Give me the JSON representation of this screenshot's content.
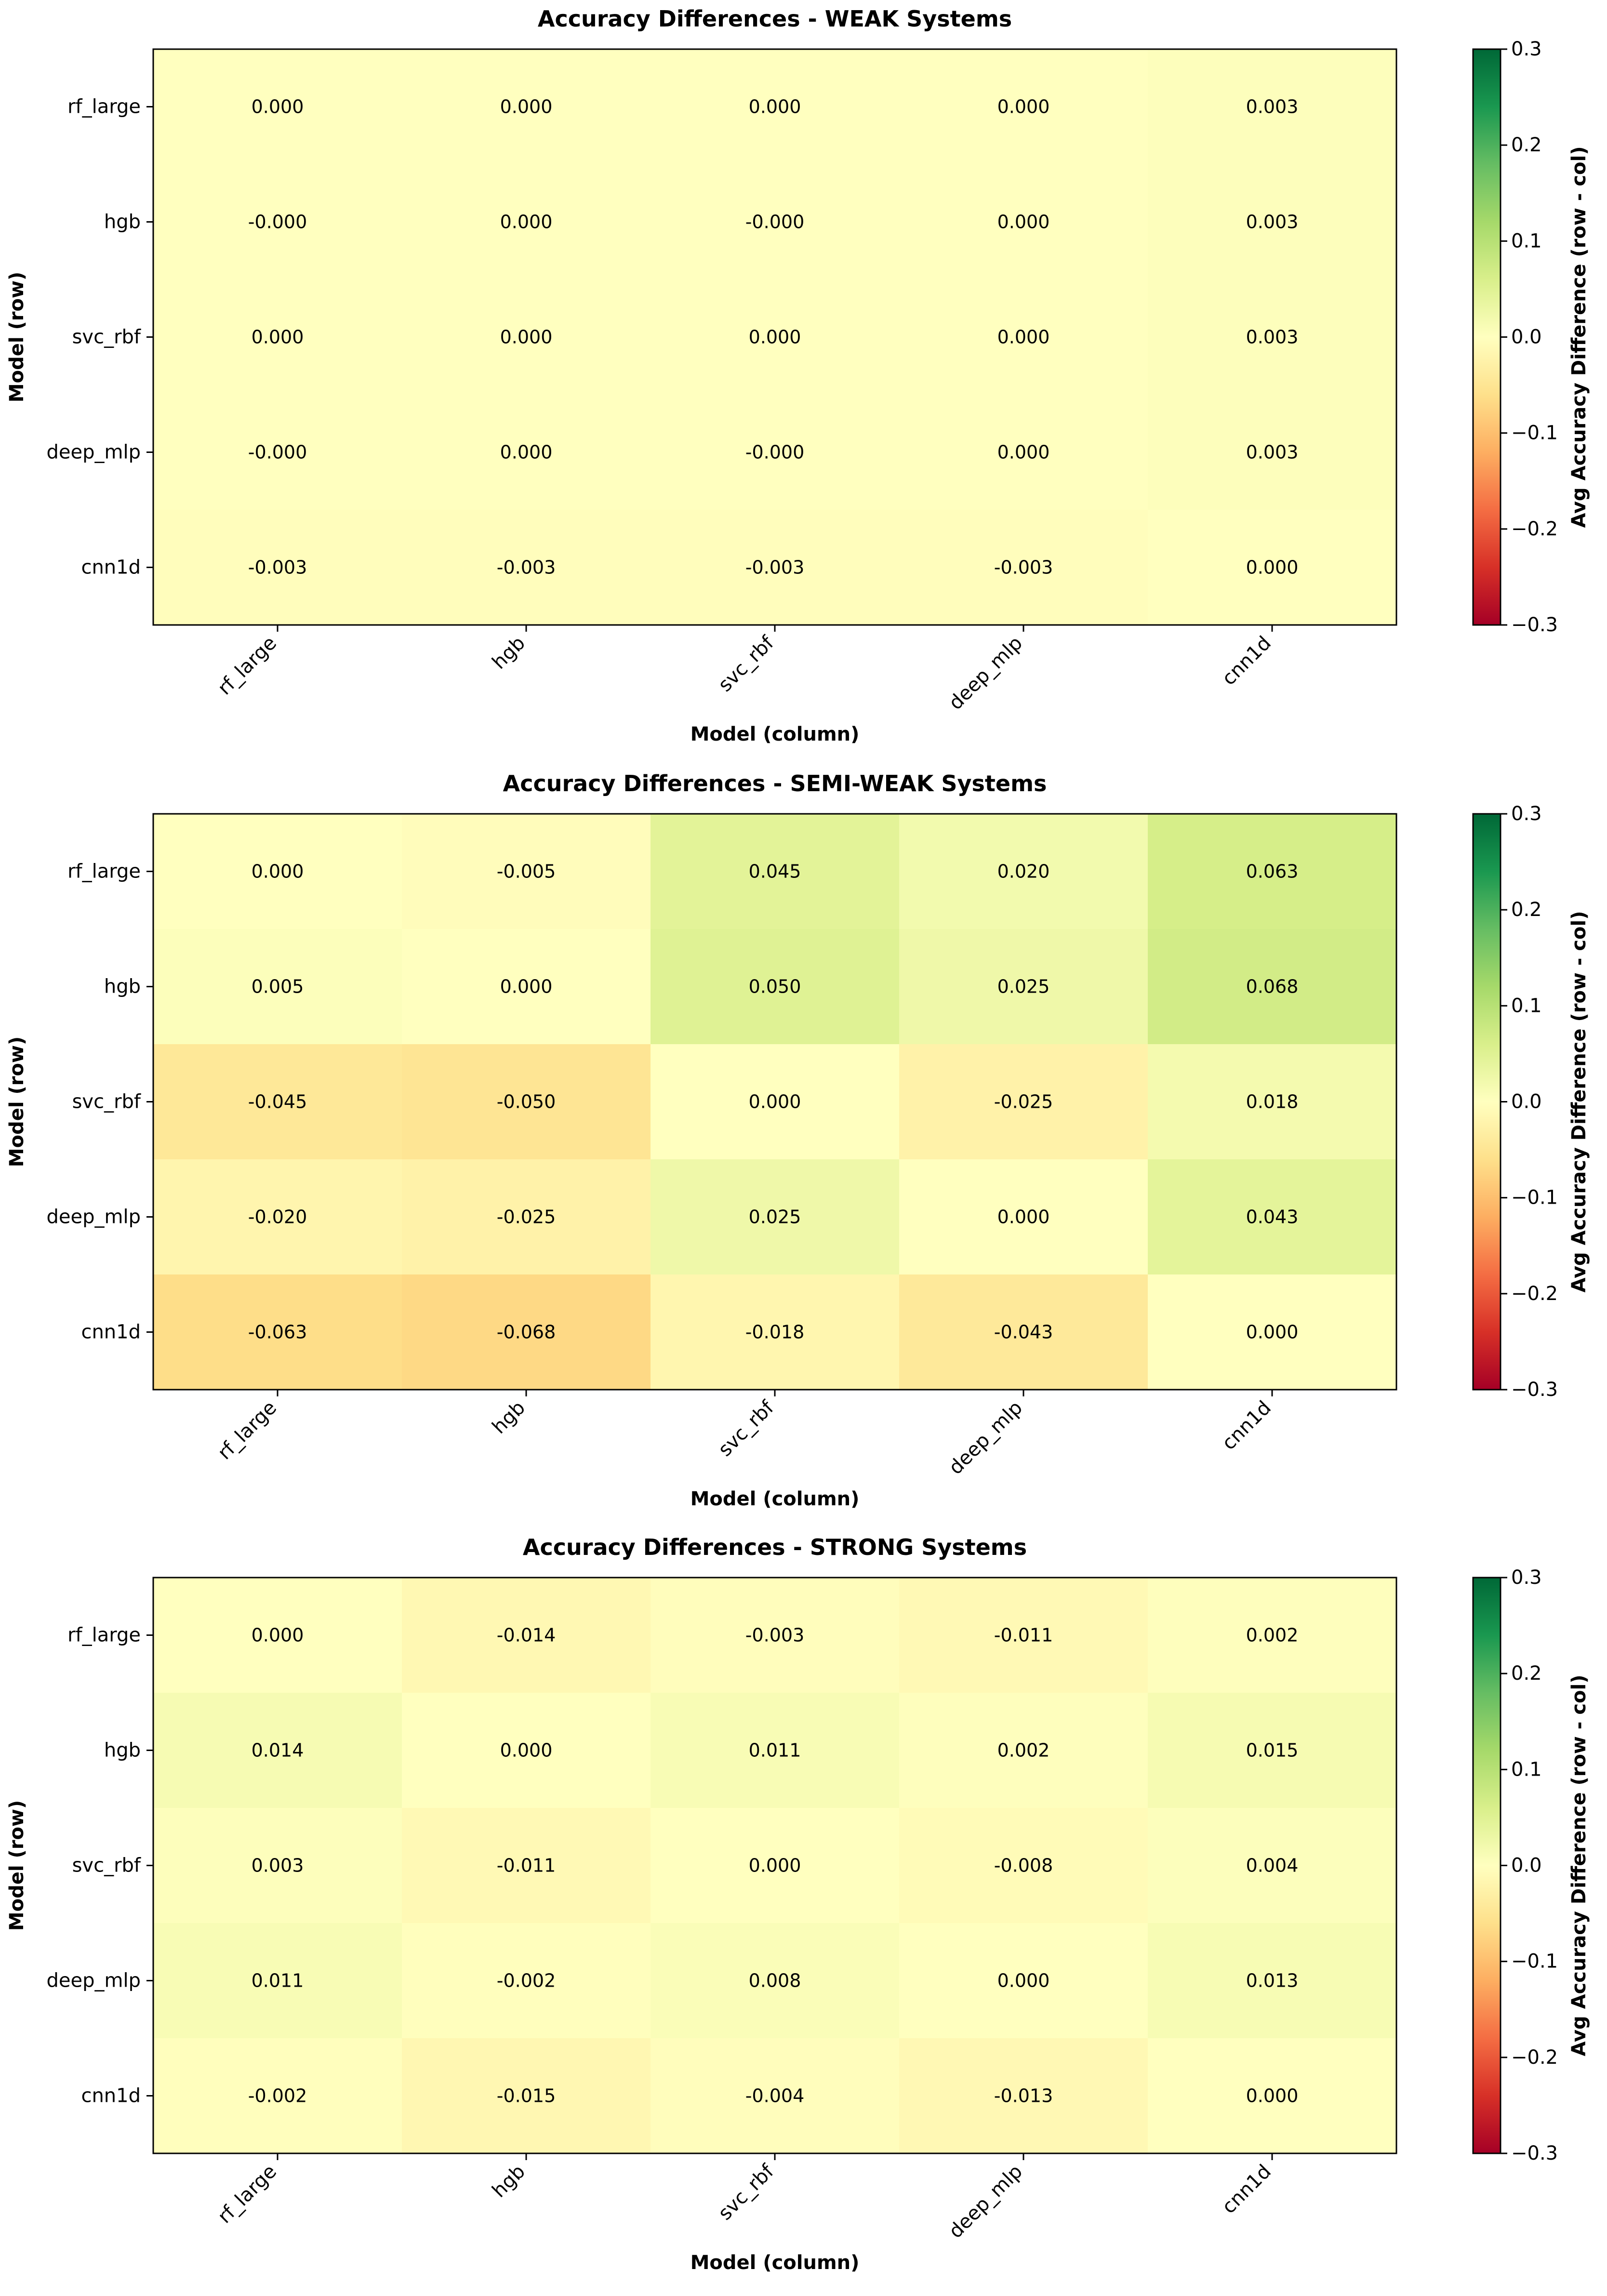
{
  "chart_data": [
    {
      "type": "heatmap",
      "title": "Accuracy Differences - WEAK Systems",
      "xlabel": "Model (column)",
      "ylabel": "Model (row)",
      "colorbar_label": "Avg Accuracy Difference (row - col)",
      "colormap": "RdYlGn",
      "vmin": -0.3,
      "vmax": 0.3,
      "colorbar_ticks": [
        "0.3",
        "0.2",
        "0.1",
        "0.0",
        "−0.1",
        "−0.2",
        "−0.3"
      ],
      "rows": [
        "rf_large",
        "hgb",
        "svc_rbf",
        "deep_mlp",
        "cnn1d"
      ],
      "columns": [
        "rf_large",
        "hgb",
        "svc_rbf",
        "deep_mlp",
        "cnn1d"
      ],
      "values": [
        [
          0.0,
          0.0,
          0.0,
          0.0,
          0.003
        ],
        [
          -0.0,
          0.0,
          -0.0,
          0.0,
          0.003
        ],
        [
          0.0,
          0.0,
          0.0,
          0.0,
          0.003
        ],
        [
          -0.0,
          0.0,
          -0.0,
          0.0,
          0.003
        ],
        [
          -0.003,
          -0.003,
          -0.003,
          -0.003,
          0.0
        ]
      ],
      "labels": [
        [
          "0.000",
          "0.000",
          "0.000",
          "0.000",
          "0.003"
        ],
        [
          "-0.000",
          "0.000",
          "-0.000",
          "0.000",
          "0.003"
        ],
        [
          "0.000",
          "0.000",
          "0.000",
          "0.000",
          "0.003"
        ],
        [
          "-0.000",
          "0.000",
          "-0.000",
          "0.000",
          "0.003"
        ],
        [
          "-0.003",
          "-0.003",
          "-0.003",
          "-0.003",
          "0.000"
        ]
      ]
    },
    {
      "type": "heatmap",
      "title": "Accuracy Differences - SEMI-WEAK Systems",
      "xlabel": "Model (column)",
      "ylabel": "Model (row)",
      "colorbar_label": "Avg Accuracy Difference (row - col)",
      "colormap": "RdYlGn",
      "vmin": -0.3,
      "vmax": 0.3,
      "colorbar_ticks": [
        "0.3",
        "0.2",
        "0.1",
        "0.0",
        "−0.1",
        "−0.2",
        "−0.3"
      ],
      "rows": [
        "rf_large",
        "hgb",
        "svc_rbf",
        "deep_mlp",
        "cnn1d"
      ],
      "columns": [
        "rf_large",
        "hgb",
        "svc_rbf",
        "deep_mlp",
        "cnn1d"
      ],
      "values": [
        [
          0.0,
          -0.005,
          0.045,
          0.02,
          0.063
        ],
        [
          0.005,
          0.0,
          0.05,
          0.025,
          0.068
        ],
        [
          -0.045,
          -0.05,
          0.0,
          -0.025,
          0.018
        ],
        [
          -0.02,
          -0.025,
          0.025,
          0.0,
          0.043
        ],
        [
          -0.063,
          -0.068,
          -0.018,
          -0.043,
          0.0
        ]
      ],
      "labels": [
        [
          "0.000",
          "-0.005",
          "0.045",
          "0.020",
          "0.063"
        ],
        [
          "0.005",
          "0.000",
          "0.050",
          "0.025",
          "0.068"
        ],
        [
          "-0.045",
          "-0.050",
          "0.000",
          "-0.025",
          "0.018"
        ],
        [
          "-0.020",
          "-0.025",
          "0.025",
          "0.000",
          "0.043"
        ],
        [
          "-0.063",
          "-0.068",
          "-0.018",
          "-0.043",
          "0.000"
        ]
      ]
    },
    {
      "type": "heatmap",
      "title": "Accuracy Differences - STRONG Systems",
      "xlabel": "Model (column)",
      "ylabel": "Model (row)",
      "colorbar_label": "Avg Accuracy Difference (row - col)",
      "colormap": "RdYlGn",
      "vmin": -0.3,
      "vmax": 0.3,
      "colorbar_ticks": [
        "0.3",
        "0.2",
        "0.1",
        "0.0",
        "−0.1",
        "−0.2",
        "−0.3"
      ],
      "rows": [
        "rf_large",
        "hgb",
        "svc_rbf",
        "deep_mlp",
        "cnn1d"
      ],
      "columns": [
        "rf_large",
        "hgb",
        "svc_rbf",
        "deep_mlp",
        "cnn1d"
      ],
      "values": [
        [
          0.0,
          -0.014,
          -0.003,
          -0.011,
          0.002
        ],
        [
          0.014,
          0.0,
          0.011,
          0.002,
          0.015
        ],
        [
          0.003,
          -0.011,
          0.0,
          -0.008,
          0.004
        ],
        [
          0.011,
          -0.002,
          0.008,
          0.0,
          0.013
        ],
        [
          -0.002,
          -0.015,
          -0.004,
          -0.013,
          0.0
        ]
      ],
      "labels": [
        [
          "0.000",
          "-0.014",
          "-0.003",
          "-0.011",
          "0.002"
        ],
        [
          "0.014",
          "0.000",
          "0.011",
          "0.002",
          "0.015"
        ],
        [
          "0.003",
          "-0.011",
          "0.000",
          "-0.008",
          "0.004"
        ],
        [
          "0.011",
          "-0.002",
          "0.008",
          "0.000",
          "0.013"
        ],
        [
          "-0.002",
          "-0.015",
          "-0.004",
          "-0.013",
          "0.000"
        ]
      ]
    }
  ]
}
